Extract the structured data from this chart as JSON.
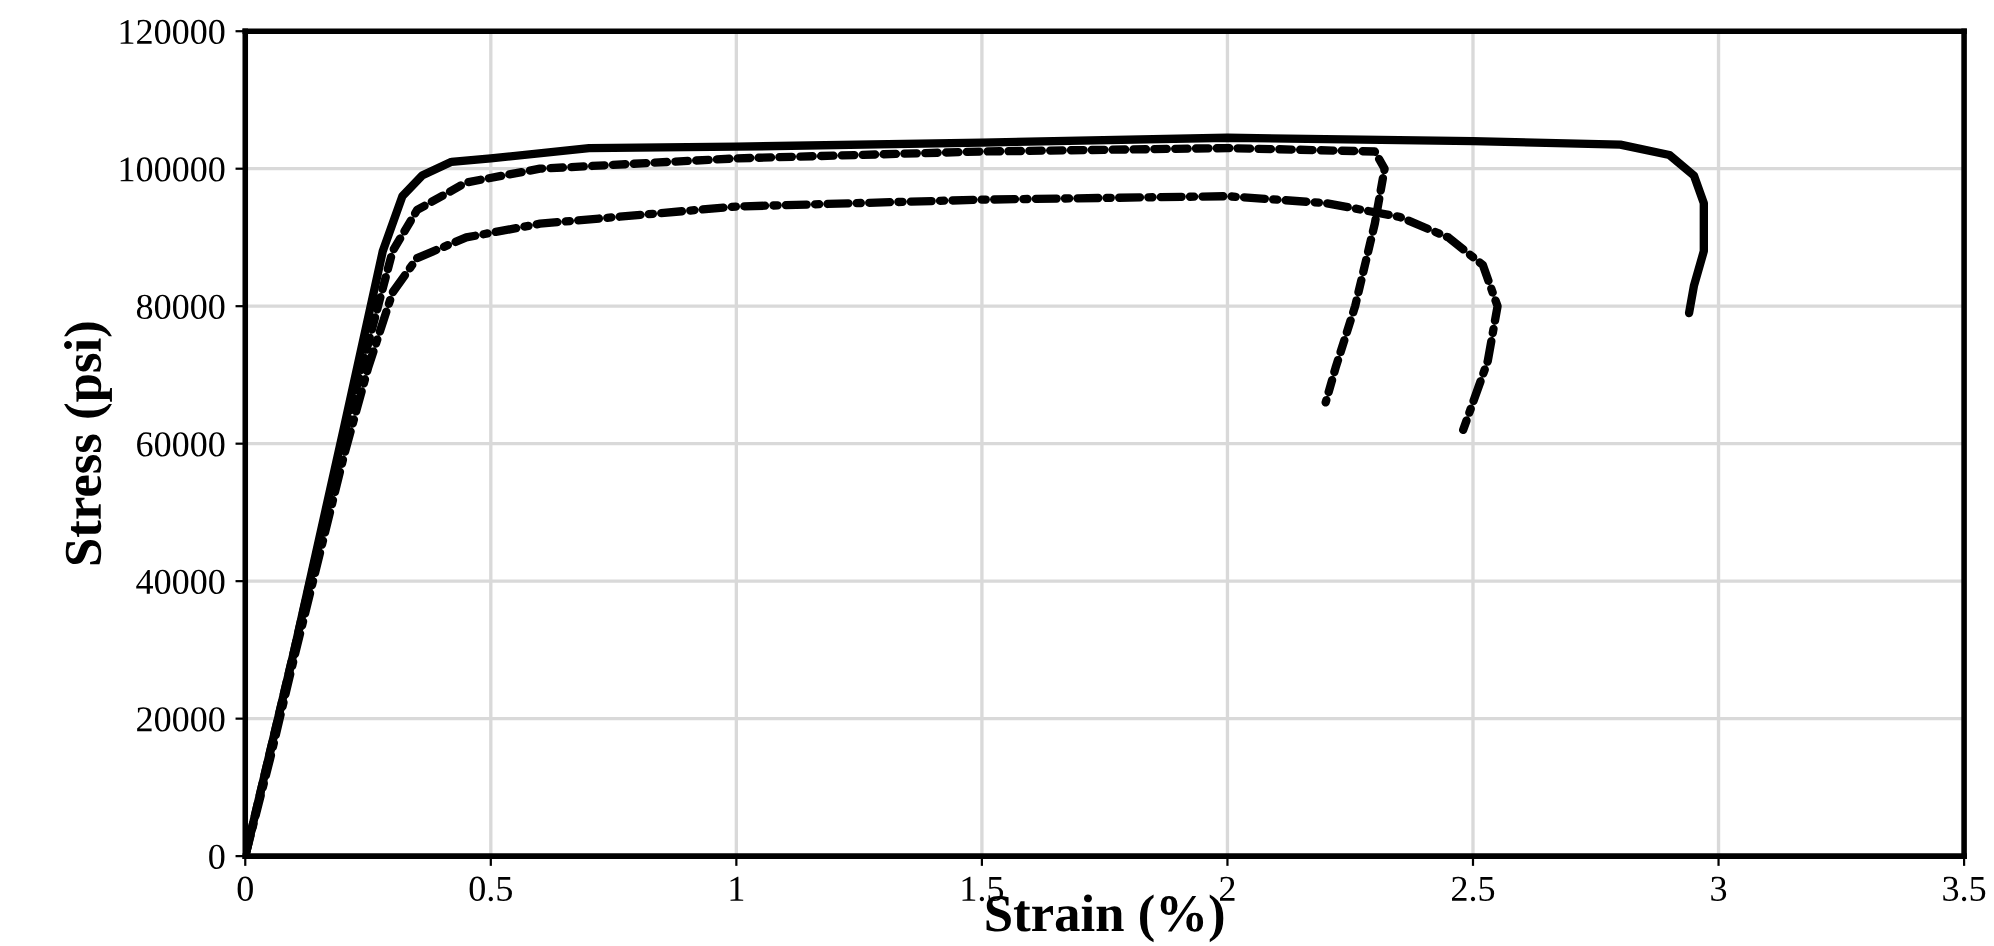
{
  "chart_data": {
    "type": "line",
    "xlabel": "Strain (%)",
    "ylabel": "Stress (psi)",
    "xlim": [
      0,
      3.5
    ],
    "xticks": [
      0,
      {
        "value": 0.5,
        "label": "0.5"
      },
      1,
      {
        "value": 1.5,
        "label": "1.5"
      },
      2,
      {
        "value": 2.5,
        "label": "2.5"
      },
      3,
      {
        "value": 3.5,
        "label": "3.5"
      }
    ],
    "ylim": [
      0,
      120000
    ],
    "yticks": [
      0,
      20000,
      40000,
      60000,
      80000,
      100000,
      120000
    ],
    "grid": true,
    "legend": false,
    "marker": "none",
    "series": [
      {
        "color": "#000000",
        "line_style": "solid",
        "x": [
          0,
          0.05,
          0.1,
          0.2,
          0.28,
          0.32,
          0.36,
          0.42,
          0.5,
          0.7,
          1.0,
          1.5,
          2.0,
          2.5,
          2.8,
          2.9,
          2.95,
          2.97,
          2.97,
          2.95,
          2.94
        ],
        "values": [
          0,
          15000,
          30000,
          62000,
          88000,
          96000,
          99000,
          101000,
          101500,
          103000,
          103200,
          103800,
          104500,
          104000,
          103500,
          102000,
          99000,
          95000,
          88000,
          83000,
          79000
        ]
      },
      {
        "color": "#000000",
        "line_style": "dashed",
        "x": [
          0,
          0.05,
          0.1,
          0.2,
          0.3,
          0.35,
          0.45,
          0.6,
          1.0,
          1.5,
          2.0,
          2.3,
          2.32,
          2.3,
          2.26,
          2.22,
          2.2
        ],
        "values": [
          0,
          15000,
          30000,
          61000,
          88000,
          94000,
          98000,
          100000,
          101500,
          102500,
          103000,
          102500,
          100000,
          92000,
          80000,
          71000,
          66000
        ]
      },
      {
        "color": "#000000",
        "line_style": "dashdot",
        "x": [
          0,
          0.05,
          0.1,
          0.2,
          0.25,
          0.3,
          0.35,
          0.45,
          0.6,
          1.0,
          1.5,
          2.0,
          2.2,
          2.35,
          2.45,
          2.52,
          2.55,
          2.53,
          2.5,
          2.48
        ],
        "values": [
          0,
          14000,
          29000,
          58000,
          71000,
          82000,
          87000,
          90000,
          92000,
          94500,
          95500,
          96000,
          95000,
          93000,
          90000,
          86000,
          80000,
          72000,
          66000,
          62000
        ]
      }
    ]
  }
}
